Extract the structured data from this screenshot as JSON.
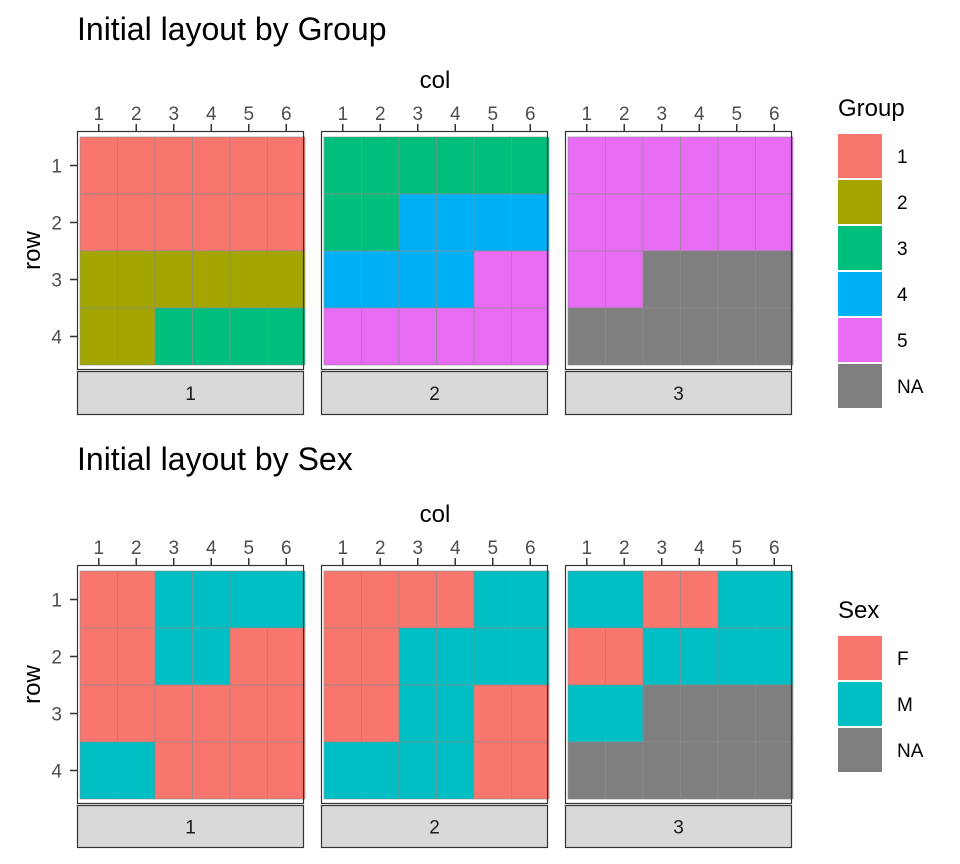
{
  "figure": {
    "background": "#ffffff"
  },
  "chart_data": [
    {
      "type": "heatmap",
      "title": "Initial layout by Group",
      "xlabel": "col",
      "ylabel": "row",
      "x_ticks": [
        "1",
        "2",
        "3",
        "4",
        "5",
        "6"
      ],
      "y_ticks": [
        "1",
        "2",
        "3",
        "4"
      ],
      "legend": {
        "title": "Group",
        "position": "right",
        "entries": [
          {
            "label": "1",
            "color": "#F8766D"
          },
          {
            "label": "2",
            "color": "#A3A500"
          },
          {
            "label": "3",
            "color": "#00BF7D"
          },
          {
            "label": "4",
            "color": "#00B0F6"
          },
          {
            "label": "5",
            "color": "#E76BF3"
          },
          {
            "label": "NA",
            "color": "#7F7F7F"
          }
        ]
      },
      "panels": [
        {
          "label": "1",
          "cells": [
            [
              "1",
              "1",
              "1",
              "1",
              "1",
              "1"
            ],
            [
              "1",
              "1",
              "1",
              "1",
              "1",
              "1"
            ],
            [
              "2",
              "2",
              "2",
              "2",
              "2",
              "2"
            ],
            [
              "2",
              "2",
              "3",
              "3",
              "3",
              "3"
            ]
          ]
        },
        {
          "label": "2",
          "cells": [
            [
              "3",
              "3",
              "3",
              "3",
              "3",
              "3"
            ],
            [
              "3",
              "3",
              "4",
              "4",
              "4",
              "4"
            ],
            [
              "4",
              "4",
              "4",
              "4",
              "5",
              "5"
            ],
            [
              "5",
              "5",
              "5",
              "5",
              "5",
              "5"
            ]
          ]
        },
        {
          "label": "3",
          "cells": [
            [
              "5",
              "5",
              "5",
              "5",
              "5",
              "5"
            ],
            [
              "5",
              "5",
              "5",
              "5",
              "5",
              "5"
            ],
            [
              "5",
              "5",
              "NA",
              "NA",
              "NA",
              "NA"
            ],
            [
              "NA",
              "NA",
              "NA",
              "NA",
              "NA",
              "NA"
            ]
          ]
        }
      ]
    },
    {
      "type": "heatmap",
      "title": "Initial layout by Sex",
      "xlabel": "col",
      "ylabel": "row",
      "x_ticks": [
        "1",
        "2",
        "3",
        "4",
        "5",
        "6"
      ],
      "y_ticks": [
        "1",
        "2",
        "3",
        "4"
      ],
      "legend": {
        "title": "Sex",
        "position": "right",
        "entries": [
          {
            "label": "F",
            "color": "#F8766D"
          },
          {
            "label": "M",
            "color": "#00BFC4"
          },
          {
            "label": "NA",
            "color": "#7F7F7F"
          }
        ]
      },
      "panels": [
        {
          "label": "1",
          "cells": [
            [
              "F",
              "F",
              "M",
              "M",
              "M",
              "M"
            ],
            [
              "F",
              "F",
              "M",
              "M",
              "F",
              "F"
            ],
            [
              "F",
              "F",
              "F",
              "F",
              "F",
              "F"
            ],
            [
              "M",
              "M",
              "F",
              "F",
              "F",
              "F"
            ]
          ]
        },
        {
          "label": "2",
          "cells": [
            [
              "F",
              "F",
              "F",
              "F",
              "M",
              "M"
            ],
            [
              "F",
              "F",
              "M",
              "M",
              "M",
              "M"
            ],
            [
              "F",
              "F",
              "M",
              "M",
              "F",
              "F"
            ],
            [
              "M",
              "M",
              "M",
              "M",
              "F",
              "F"
            ]
          ]
        },
        {
          "label": "3",
          "cells": [
            [
              "M",
              "M",
              "F",
              "F",
              "M",
              "M"
            ],
            [
              "F",
              "F",
              "M",
              "M",
              "M",
              "M"
            ],
            [
              "M",
              "M",
              "NA",
              "NA",
              "NA",
              "NA"
            ],
            [
              "NA",
              "NA",
              "NA",
              "NA",
              "NA",
              "NA"
            ]
          ]
        }
      ]
    }
  ]
}
